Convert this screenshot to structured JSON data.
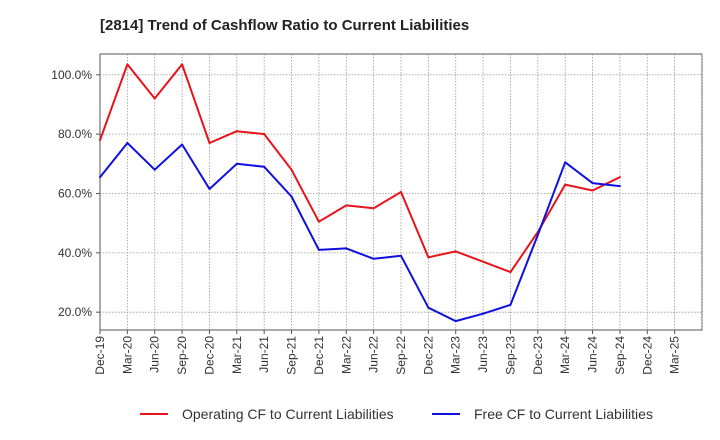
{
  "chart_data": {
    "type": "line",
    "title": "[2814]  Trend of Cashflow Ratio to Current Liabilities",
    "xlabel": "",
    "ylabel": "",
    "x": [
      "Dec-19",
      "Mar-20",
      "Jun-20",
      "Sep-20",
      "Dec-20",
      "Mar-21",
      "Jun-21",
      "Sep-21",
      "Dec-21",
      "Mar-22",
      "Jun-22",
      "Sep-22",
      "Dec-22",
      "Mar-23",
      "Jun-23",
      "Sep-23",
      "Dec-23",
      "Mar-24",
      "Jun-24",
      "Sep-24",
      "Dec-24",
      "Mar-25"
    ],
    "ylim": [
      14,
      107
    ],
    "yticks": [
      20,
      40,
      60,
      80,
      100
    ],
    "ytick_labels": [
      "20.0%",
      "40.0%",
      "60.0%",
      "80.0%",
      "100.0%"
    ],
    "grid": true,
    "legend_position": "bottom",
    "series": [
      {
        "name": "Operating CF to Current Liabilities",
        "color": "#e8131b",
        "values": [
          78.0,
          103.5,
          92.0,
          103.5,
          77.0,
          81.0,
          80.0,
          68.0,
          50.5,
          56.0,
          55.0,
          60.5,
          38.5,
          40.5,
          37.0,
          33.5,
          47.0,
          63.0,
          61.0,
          65.5,
          null,
          null
        ]
      },
      {
        "name": "Free CF to Current Liabilities",
        "color": "#1010e0",
        "values": [
          65.5,
          77.0,
          68.0,
          76.5,
          61.5,
          70.0,
          69.0,
          59.0,
          41.0,
          41.5,
          38.0,
          39.0,
          21.5,
          17.0,
          19.5,
          22.5,
          46.0,
          70.5,
          63.5,
          62.5,
          null,
          null
        ]
      }
    ]
  }
}
